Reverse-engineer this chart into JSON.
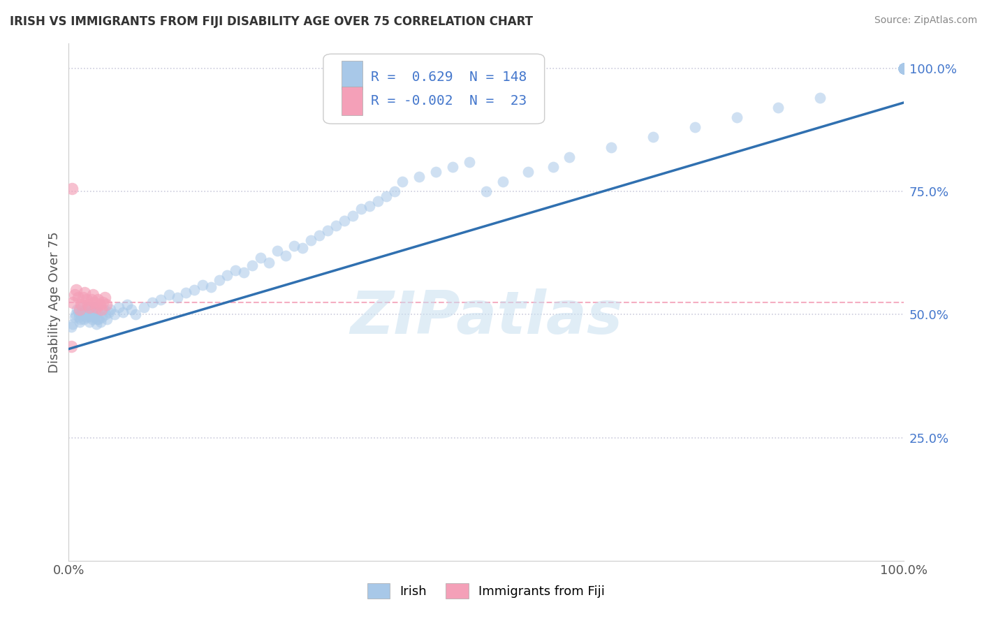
{
  "title": "IRISH VS IMMIGRANTS FROM FIJI DISABILITY AGE OVER 75 CORRELATION CHART",
  "source": "Source: ZipAtlas.com",
  "ylabel": "Disability Age Over 75",
  "legend_irish_R": "0.629",
  "legend_irish_N": "148",
  "legend_fiji_R": "-0.002",
  "legend_fiji_N": "23",
  "legend_irish_label": "Irish",
  "legend_fiji_label": "Immigrants from Fiji",
  "irish_color": "#a8c8e8",
  "fiji_color": "#f4a0b8",
  "regression_color": "#3070b0",
  "fiji_mean_line_color": "#f4a0b8",
  "watermark_color": "#c8dff0",
  "background_color": "#ffffff",
  "title_color": "#333333",
  "source_color": "#888888",
  "axis_label_color": "#555555",
  "tick_label_color": "#4477cc",
  "grid_color": "#ccccdd",
  "irish_x": [
    0.3,
    0.5,
    0.7,
    0.8,
    1.0,
    1.1,
    1.2,
    1.3,
    1.4,
    1.5,
    1.6,
    1.7,
    1.8,
    1.9,
    2.0,
    2.1,
    2.2,
    2.3,
    2.4,
    2.5,
    2.6,
    2.7,
    2.8,
    2.9,
    3.0,
    3.1,
    3.2,
    3.3,
    3.4,
    3.5,
    3.6,
    3.8,
    4.0,
    4.2,
    4.4,
    4.6,
    4.8,
    5.0,
    5.5,
    6.0,
    6.5,
    7.0,
    7.5,
    8.0,
    9.0,
    10.0,
    11.0,
    12.0,
    13.0,
    14.0,
    15.0,
    16.0,
    17.0,
    18.0,
    19.0,
    20.0,
    21.0,
    22.0,
    23.0,
    24.0,
    25.0,
    26.0,
    27.0,
    28.0,
    29.0,
    30.0,
    31.0,
    32.0,
    33.0,
    34.0,
    35.0,
    36.0,
    37.0,
    38.0,
    39.0,
    40.0,
    42.0,
    44.0,
    46.0,
    48.0,
    50.0,
    52.0,
    55.0,
    58.0,
    60.0,
    65.0,
    70.0,
    75.0,
    80.0,
    85.0,
    90.0,
    100.0,
    100.0,
    100.0,
    100.0,
    100.0,
    100.0,
    100.0,
    100.0,
    100.0,
    100.0,
    100.0,
    100.0,
    100.0,
    100.0,
    100.0,
    100.0,
    100.0,
    100.0,
    100.0,
    100.0,
    100.0,
    100.0,
    100.0,
    100.0,
    100.0,
    100.0,
    100.0,
    100.0,
    100.0,
    100.0,
    100.0,
    100.0,
    100.0,
    100.0,
    100.0,
    100.0,
    100.0,
    100.0,
    100.0,
    100.0,
    100.0,
    100.0,
    100.0,
    100.0,
    100.0,
    100.0,
    100.0,
    100.0,
    100.0,
    100.0,
    100.0,
    100.0,
    100.0,
    100.0,
    100.0,
    100.0,
    100.0
  ],
  "irish_y": [
    47.5,
    48.0,
    49.5,
    50.0,
    51.0,
    50.5,
    49.5,
    48.5,
    49.0,
    50.0,
    51.5,
    50.0,
    49.0,
    50.5,
    51.0,
    49.5,
    50.0,
    51.5,
    50.0,
    48.5,
    49.5,
    50.5,
    49.0,
    50.0,
    51.5,
    49.5,
    50.5,
    48.0,
    49.0,
    50.5,
    49.0,
    48.5,
    49.5,
    51.0,
    50.0,
    49.0,
    50.5,
    51.0,
    50.0,
    51.5,
    50.5,
    52.0,
    51.0,
    50.0,
    51.5,
    52.5,
    53.0,
    54.0,
    53.5,
    54.5,
    55.0,
    56.0,
    55.5,
    57.0,
    58.0,
    59.0,
    58.5,
    60.0,
    61.5,
    60.5,
    63.0,
    62.0,
    64.0,
    63.5,
    65.0,
    66.0,
    67.0,
    68.0,
    69.0,
    70.0,
    71.5,
    72.0,
    73.0,
    74.0,
    75.0,
    77.0,
    78.0,
    79.0,
    80.0,
    81.0,
    75.0,
    77.0,
    79.0,
    80.0,
    82.0,
    84.0,
    86.0,
    88.0,
    90.0,
    92.0,
    94.0,
    100.0,
    100.0,
    100.0,
    100.0,
    100.0,
    100.0,
    100.0,
    100.0,
    100.0,
    100.0,
    100.0,
    100.0,
    100.0,
    100.0,
    100.0,
    100.0,
    100.0,
    100.0,
    100.0,
    100.0,
    100.0,
    100.0,
    100.0,
    100.0,
    100.0,
    100.0,
    100.0,
    100.0,
    100.0,
    100.0,
    100.0,
    100.0,
    100.0,
    100.0,
    100.0,
    100.0,
    100.0,
    100.0,
    100.0,
    100.0,
    100.0,
    100.0,
    100.0,
    100.0,
    100.0,
    100.0,
    100.0,
    100.0,
    100.0,
    100.0,
    100.0,
    100.0,
    100.0,
    100.0,
    100.0,
    100.0,
    100.0
  ],
  "fiji_x": [
    0.3,
    0.5,
    0.7,
    0.9,
    1.1,
    1.3,
    1.5,
    1.7,
    1.9,
    2.1,
    2.3,
    2.5,
    2.7,
    2.9,
    3.1,
    3.3,
    3.5,
    3.7,
    3.9,
    4.1,
    4.3,
    4.5,
    0.4
  ],
  "fiji_y": [
    43.5,
    52.5,
    54.0,
    55.0,
    53.5,
    51.0,
    52.0,
    53.5,
    54.5,
    53.0,
    52.0,
    51.5,
    53.0,
    54.0,
    52.5,
    51.5,
    53.0,
    52.0,
    51.0,
    52.5,
    53.5,
    52.0,
    75.5
  ],
  "reg_x0": 0.0,
  "reg_y0": 43.0,
  "reg_x1": 100.0,
  "reg_y1": 93.0,
  "fiji_mean_y": 52.5,
  "xlim": [
    0,
    100
  ],
  "ylim": [
    0,
    105
  ],
  "ytick_positions": [
    25,
    50,
    75,
    100
  ],
  "ytick_labels": [
    "25.0%",
    "50.0%",
    "75.0%",
    "100.0%"
  ]
}
